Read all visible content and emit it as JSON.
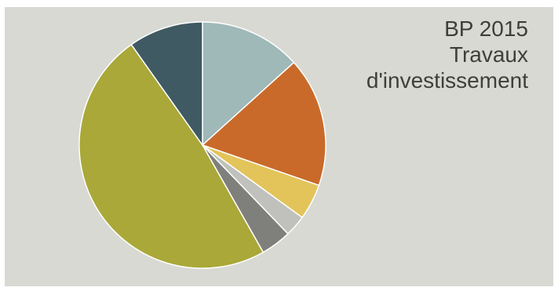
{
  "title_lines": [
    "BP 2015",
    "Travaux",
    "d'investissement"
  ],
  "colors": {
    "panel_background": "#d8d9d3",
    "title_text": "#3e3f3a",
    "label_light": "#f2f2ea",
    "label_dark": "#3e3f3a",
    "slice_edge": "#ffffff"
  },
  "chart_data": {
    "type": "pie",
    "title": "BP 2015 Travaux d'investissement",
    "start_angle_deg": 0,
    "direction": "clockwise",
    "slices": [
      {
        "category": "",
        "amount": "",
        "share": 0.133,
        "color": "#9fb8b8",
        "label_inside": true
      },
      {
        "category": "",
        "amount": "",
        "share": 0.17,
        "color": "#c96a2a",
        "label_inside": true
      },
      {
        "category": "",
        "amount": "",
        "share": 0.047,
        "color": "#e2c45a",
        "label_inside": false
      },
      {
        "category": "",
        "amount": "",
        "share": 0.028,
        "color": "#c0c1bc",
        "label_inside": false
      },
      {
        "category": "",
        "amount": "",
        "share": 0.04,
        "color": "#7f7f7b",
        "label_inside": false
      },
      {
        "category": "",
        "amount": "",
        "share": 0.484,
        "color": "#a9a838",
        "label_inside": true
      },
      {
        "category": "",
        "amount": "",
        "share": 0.098,
        "color": "#3f5a63",
        "label_inside": false
      }
    ]
  }
}
